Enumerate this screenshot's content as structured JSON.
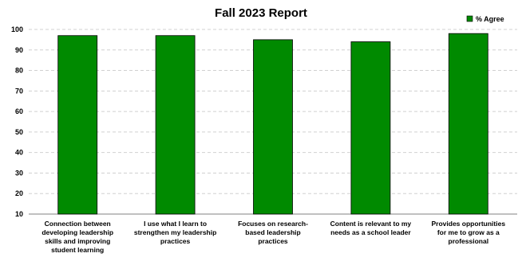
{
  "chart_data": {
    "type": "bar",
    "title": "Fall 2023 Report",
    "categories": [
      [
        "Connection between",
        "developing leadership",
        "skills and improving",
        "student learning"
      ],
      [
        "I use what I learn to",
        "strengthen my leadership",
        "practices"
      ],
      [
        "Focuses on research-",
        "based leadership",
        "practices"
      ],
      [
        "Content is relevant to my",
        "needs as a school leader"
      ],
      [
        "Provides opportunities",
        "for me to grow as a",
        "professional"
      ]
    ],
    "series": [
      {
        "name": "% Agree",
        "values": [
          97,
          97,
          95,
          94,
          98
        ],
        "color": "#008a00"
      }
    ],
    "ylim": [
      10,
      100
    ],
    "yticks": [
      "10",
      "20",
      "30",
      "40",
      "50",
      "60",
      "70",
      "80",
      "90",
      "100"
    ],
    "grid": true,
    "legend": "top-right",
    "xlabel": "",
    "ylabel": ""
  }
}
